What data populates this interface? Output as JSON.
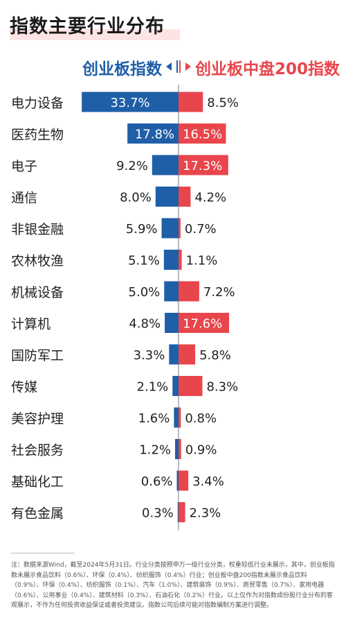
{
  "title": "指数主要行业分布",
  "legend": {
    "left": "创业板指数",
    "right": "创业板中盘200指数"
  },
  "colors": {
    "left": "#1f5fa8",
    "right": "#e8464c",
    "axis": "#b9bcc2"
  },
  "chart_data": {
    "type": "bar",
    "orientation": "horizontal-diverging",
    "categories": [
      "电力设备",
      "医药生物",
      "电子",
      "通信",
      "非银金融",
      "农林牧渔",
      "机械设备",
      "计算机",
      "国防军工",
      "传媒",
      "美容护理",
      "社会服务",
      "基础化工",
      "有色金属"
    ],
    "series": [
      {
        "name": "创业板指数",
        "values": [
          33.7,
          17.8,
          9.2,
          8.0,
          5.9,
          5.1,
          5.0,
          4.8,
          3.3,
          2.1,
          1.6,
          1.2,
          0.6,
          0.3
        ],
        "labels": [
          "33.7%",
          "17.8%",
          "9.2%",
          "8.0%",
          "5.9%",
          "5.1%",
          "5.0%",
          "4.8%",
          "3.3%",
          "2.1%",
          "1.6%",
          "1.2%",
          "0.6%",
          "0.3%"
        ]
      },
      {
        "name": "创业板中盘200指数",
        "values": [
          8.5,
          16.5,
          17.3,
          4.2,
          0.7,
          1.1,
          7.2,
          17.6,
          5.8,
          8.3,
          0.8,
          0.9,
          3.4,
          2.3
        ],
        "labels": [
          "8.5%",
          "16.5%",
          "17.3%",
          "4.2%",
          "0.7%",
          "1.1%",
          "7.2%",
          "17.6%",
          "5.8%",
          "8.3%",
          "0.8%",
          "0.9%",
          "3.4%",
          "2.3%"
        ]
      }
    ]
  },
  "footnote": "注：数据来源Wind，截至2024年5月31日。行业分类按照申万一级行业分类，权重较低行业未展示，其中，创业板指数未展示食品饮料（0.6%）、环保（0.4%）、纺织服饰（0.4%）行业；创业板中盘200指数未展示食品饮料（0.9%）、环保（0.4%）、纺织服饰（0.1%）、汽车（1.0%）、建筑装饰（0.9%）、商贸零售（0.7%）、家用电器（0.6%）、公用事业（0.4%）、建筑材料（0.3%）、石油石化（0.2%）行业。以上仅作为对指数成份股行业分布的客观展示，不作为任何投资收益保证或者投资建议。指数公司后续可能对指数编制方案进行调整。"
}
